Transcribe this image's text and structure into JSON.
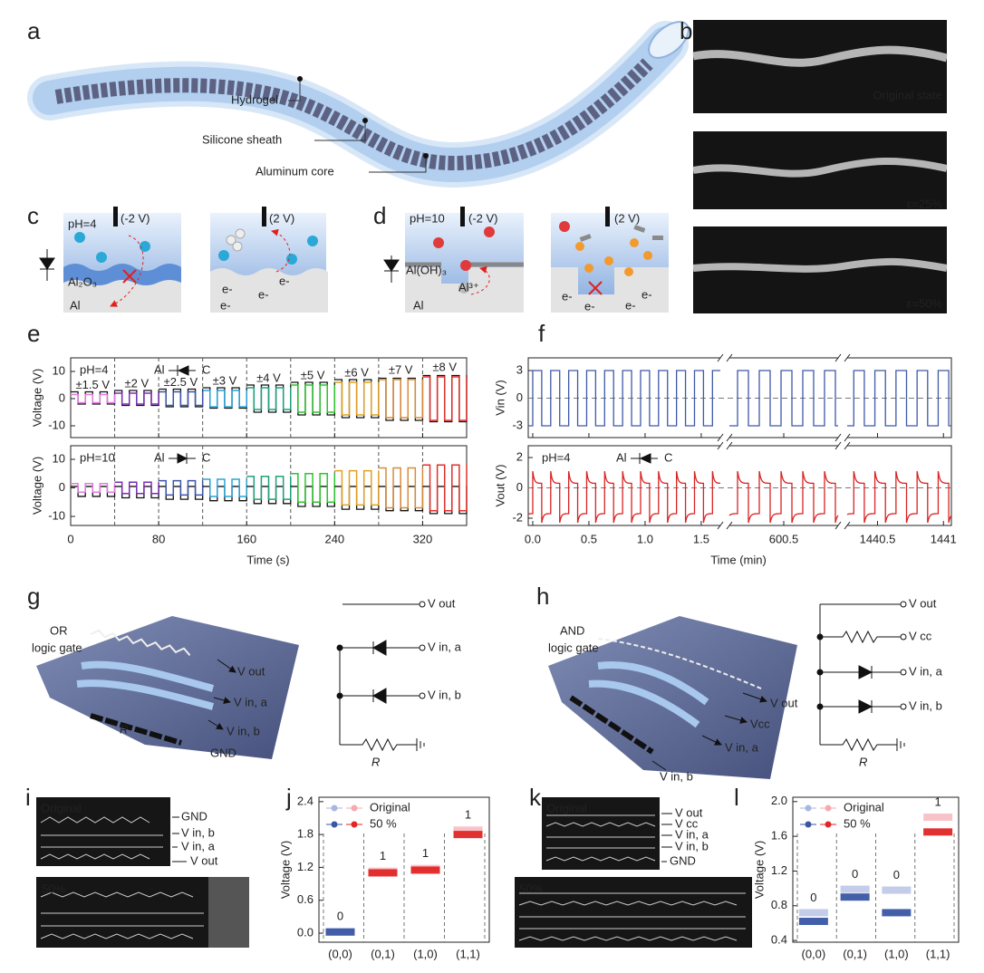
{
  "panel_labels": [
    "a",
    "b",
    "c",
    "d",
    "e",
    "f",
    "g",
    "h",
    "i",
    "j",
    "k",
    "l"
  ],
  "a": {
    "callouts": [
      "Hydrogel",
      "Silicone sheath",
      "Aluminum core"
    ]
  },
  "b": {
    "captions": [
      "Original state",
      "ε=25%",
      "ε=50%"
    ]
  },
  "c": {
    "ph": "pH=4",
    "bias": [
      "(-2 V)",
      "(2 V)"
    ],
    "oxide": "Al₂O₃",
    "metal": "Al",
    "electron": "e-"
  },
  "d": {
    "ph": "pH=10",
    "bias": [
      "(-2 V)",
      "(2 V)"
    ],
    "hydroxide": "Al(OH)₃",
    "metal": "Al",
    "ion": "Al³⁺",
    "electron": "e-"
  },
  "chart_data": [
    {
      "type": "waveform",
      "ylabel": "Voltage (V)",
      "ylim": [
        -14.33,
        15
      ],
      "yticks": [
        10,
        0,
        -10
      ],
      "xlim": [
        0,
        360
      ],
      "segment_duration": 40,
      "period": 13.33,
      "annotation": "pH=4",
      "device": [
        "Al",
        "C"
      ],
      "diode": "reverse",
      "input": {
        "values": [
          1.5,
          2,
          2.5,
          3,
          4,
          5,
          6,
          7,
          8
        ],
        "value_labels": [
          "±1.5 V",
          "±2 V",
          "±2.5 V",
          "±3 V",
          "±4 V",
          "±5 V",
          "±6 V",
          "±7 V",
          "±8 V"
        ],
        "colors": [
          "#e07be0",
          "#7a2fb5",
          "#3b55a8",
          "#2aa3d8",
          "#1fa07a",
          "#2ec42e",
          "#e0a020",
          "#d98c3a",
          "#e0302a"
        ]
      },
      "output": {
        "color": "#111111",
        "high": [
          2.5,
          3,
          3.5,
          4,
          5,
          6,
          7,
          7.5,
          8.5
        ],
        "low": [
          -2,
          -2.5,
          -3,
          -3.5,
          -5,
          -6,
          -7,
          -8,
          -8.5
        ]
      }
    },
    {
      "type": "waveform",
      "ylabel": "Voltage (V)",
      "ylim": [
        -13.17,
        14.76
      ],
      "yticks": [
        10,
        0,
        -10
      ],
      "xlim": [
        0,
        360
      ],
      "segment_duration": 40,
      "period": 13.33,
      "xticks": [
        0,
        80,
        160,
        240,
        320
      ],
      "xlabel": "Time (s)",
      "annotation": "pH=10",
      "device": [
        "Al",
        "C"
      ],
      "diode": "forward",
      "input": {
        "values": [
          1.5,
          2,
          2.5,
          3,
          4,
          5,
          6,
          7,
          8
        ],
        "colors": [
          "#e07be0",
          "#7a2fb5",
          "#3b55a8",
          "#2aa3d8",
          "#1fa07a",
          "#2ec42e",
          "#e0a020",
          "#d98c3a",
          "#e0302a"
        ]
      },
      "output": {
        "color": "#111111",
        "high": [
          0.5,
          0.5,
          0.5,
          0.5,
          0.5,
          0.5,
          0.5,
          0.5,
          0.5
        ],
        "low": [
          -3,
          -3.5,
          -4,
          -4.5,
          -5.5,
          -6.5,
          -7.5,
          -8,
          -9
        ]
      }
    },
    {
      "type": "waveform",
      "ylabel": "Vin (V)",
      "ylim": [
        -4.28,
        4.38
      ],
      "yticks": [
        3,
        0,
        -3
      ],
      "zero_line": true,
      "amplitude": 3,
      "period": 0.16,
      "color": "#3e58a8",
      "x_segments": [
        {
          "xlim": [
            -0.04,
            1.67
          ]
        },
        {
          "xlim": [
            600.1,
            600.9
          ]
        },
        {
          "xlim": [
            1440.27,
            1441.06
          ]
        }
      ]
    },
    {
      "type": "waveform",
      "ylabel": "Vout (V)",
      "ylim": [
        -2.48,
        2.78
      ],
      "yticks": [
        2,
        0,
        -2
      ],
      "zero_line": true,
      "period": 0.16,
      "peak_high": 1.1,
      "high": 0.3,
      "peak_low": -2.3,
      "low": -1.7,
      "color": "#d92323",
      "annotation": "pH=4",
      "device": [
        "Al",
        "C"
      ],
      "diode": "reverse",
      "xlabel": "Time (min)",
      "x_segments": [
        {
          "xlim": [
            -0.04,
            1.67
          ],
          "xticks": [
            {
              "value": 0,
              "label": "0.0"
            },
            0.5,
            {
              "value": 1,
              "label": "1.0"
            },
            1.5
          ]
        },
        {
          "xlim": [
            600.1,
            600.9
          ],
          "xticks": [
            600.5
          ]
        },
        {
          "xlim": [
            1440.27,
            1441.06
          ],
          "xticks": [
            1440.5,
            1441
          ]
        }
      ]
    },
    {
      "type": "dot",
      "ylabel": "Voltage (V)",
      "ylim": [
        -0.165,
        2.48
      ],
      "yticks": [
        {
          "value": 0,
          "label": "0.0"
        },
        0.6,
        1.2,
        1.8,
        2.4
      ],
      "categories": [
        "(0,0)",
        "(0,1)",
        "(1,0)",
        "(1,1)"
      ],
      "logic": [
        0,
        1,
        1,
        1
      ],
      "logic_colors": [
        "#3a56a5",
        "#e02626"
      ],
      "series": [
        {
          "name": "Original",
          "colors": [
            "#a9b6e0",
            "#f5aab0"
          ],
          "values": [
            0.03,
            1.13,
            1.18,
            1.88
          ]
        },
        {
          "name": "50 %",
          "colors": [
            "#3a56a5",
            "#e02626"
          ],
          "values": [
            0.02,
            1.1,
            1.15,
            1.8
          ]
        }
      ]
    },
    {
      "type": "dot",
      "ylabel": "Voltage (V)",
      "ylim": [
        0.38,
        2.05
      ],
      "yticks": [
        0.4,
        0.8,
        1.2,
        1.6,
        {
          "value": 2,
          "label": "2.0"
        }
      ],
      "categories": [
        "(0,0)",
        "(0,1)",
        "(1,0)",
        "(1,1)"
      ],
      "logic": [
        0,
        0,
        0,
        1
      ],
      "logic_colors": [
        "#3a56a5",
        "#e02626"
      ],
      "series": [
        {
          "name": "Original",
          "colors": [
            "#a9b6e0",
            "#f5aab0"
          ],
          "values": [
            0.72,
            0.99,
            0.98,
            1.82
          ]
        },
        {
          "name": "50 %",
          "colors": [
            "#3a56a5",
            "#e02626"
          ],
          "values": [
            0.62,
            0.9,
            0.72,
            1.65
          ]
        }
      ]
    }
  ],
  "g": {
    "title": [
      "OR",
      "logic gate"
    ],
    "fabric_labels": [
      "V out",
      "V in, a",
      "V in, b",
      "GND"
    ],
    "resistor": "R",
    "circuit_labels": [
      "V out",
      "V in, a",
      "V in, b"
    ]
  },
  "h": {
    "title": [
      "AND",
      "logic gate"
    ],
    "fabric_labels": [
      "V out",
      "Vcc",
      "V in, a",
      "V in, b"
    ],
    "circuit_labels": [
      "V out",
      "V cc",
      "V in, a",
      "V in, b"
    ],
    "resistor": "R"
  },
  "i": {
    "photo_tags": [
      "Original",
      "50%"
    ],
    "wire_labels": [
      "GND",
      "V in, b",
      "V in, a",
      "V out"
    ]
  },
  "k": {
    "photo_tags": [
      "Original",
      "50%"
    ],
    "wire_labels": [
      "V out",
      "V cc",
      "V in, a",
      "V in, b",
      "GND"
    ]
  }
}
